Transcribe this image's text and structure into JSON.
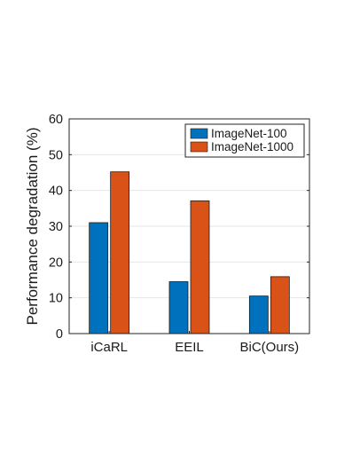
{
  "chart_data": {
    "type": "bar",
    "title": "",
    "xlabel": "",
    "ylabel": "Performance degradation (%)",
    "categories": [
      "iCaRL",
      "EEIL",
      "BiC(Ours)"
    ],
    "series": [
      {
        "name": "ImageNet-100",
        "values": [
          31,
          14.5,
          10.5
        ],
        "color": "#0072BD"
      },
      {
        "name": "ImageNet-1000",
        "values": [
          45.2,
          37.1,
          15.9
        ],
        "color": "#D95319"
      }
    ],
    "ylim": [
      0,
      60
    ],
    "yticks": [
      "0",
      "10",
      "20",
      "30",
      "40",
      "50",
      "60"
    ],
    "grid": true,
    "legend": "top-right"
  }
}
